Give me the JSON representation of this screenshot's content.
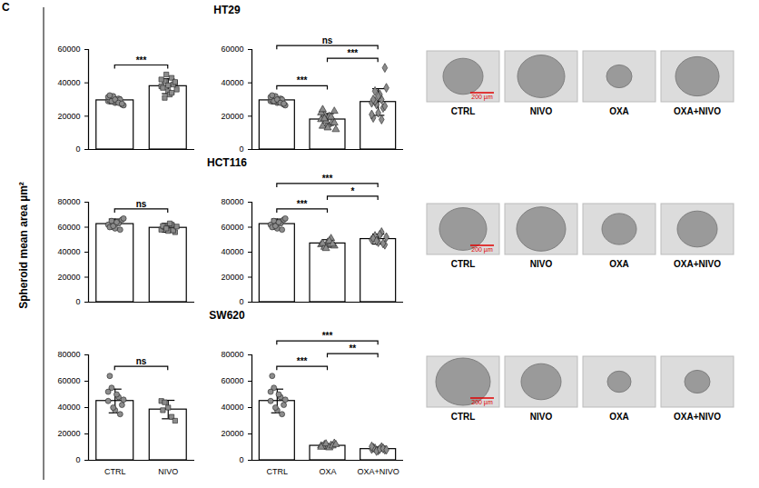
{
  "panel_label": "C",
  "ylabel": "Spheroid mean area µm²",
  "chart_data": [
    {
      "type": "bar",
      "title": "HT29",
      "categories": [
        null,
        null
      ],
      "tick_labels": "y",
      "values": [
        29500,
        38000
      ],
      "errors": [
        2000,
        4500
      ],
      "points": [
        [
          29000,
          31000,
          28000,
          30500,
          27000,
          29500,
          32000,
          28500,
          30000,
          26500,
          31500,
          29000,
          30000,
          28000,
          27500,
          32500
        ],
        [
          38000,
          41000,
          35000,
          43000,
          40000,
          37000,
          45000,
          33000,
          39000,
          36000,
          42000,
          31000,
          38500,
          34000,
          40500
        ]
      ],
      "ylim": [
        0,
        60000
      ],
      "yticks": [
        0,
        20000,
        40000,
        60000
      ],
      "significance": [
        {
          "from": 0,
          "to": 1,
          "label": "***"
        }
      ]
    },
    {
      "type": "bar",
      "categories": [
        null,
        null,
        null
      ],
      "tick_labels": "y",
      "values": [
        29500,
        18000,
        28500
      ],
      "errors": [
        2000,
        3500,
        8000
      ],
      "points": [
        [
          29000,
          31000,
          28000,
          30500,
          27000,
          29500,
          32000,
          28500,
          30000,
          26500,
          31500,
          29000,
          30000,
          28000,
          27500,
          32500
        ],
        [
          18000,
          21000,
          15000,
          19000,
          23000,
          14000,
          17000,
          20000,
          16500,
          12000,
          22000,
          18500,
          13000,
          19500,
          16000,
          24000
        ],
        [
          28000,
          35000,
          22000,
          30000,
          49000,
          19000,
          27000,
          33000,
          25000,
          37000,
          21000,
          29000,
          32000,
          18000,
          26000,
          30000
        ]
      ],
      "ylim": [
        0,
        60000
      ],
      "yticks": [
        0,
        20000,
        40000,
        60000
      ],
      "significance": [
        {
          "from": 0,
          "to": 1,
          "label": "***"
        },
        {
          "from": 1,
          "to": 2,
          "label": "***"
        },
        {
          "from": 0,
          "to": 2,
          "label": "ns"
        }
      ]
    },
    {
      "type": "bar",
      "title": "HCT116",
      "categories": [
        null,
        null
      ],
      "tick_labels": "y",
      "values": [
        62500,
        59500
      ],
      "errors": [
        4000,
        3500
      ],
      "points": [
        [
          62000,
          65000,
          59000,
          63000,
          66000,
          60000,
          61000,
          64000,
          58000,
          67000
        ],
        [
          58000,
          60000,
          57000,
          62000,
          56000,
          61000,
          59000,
          63000,
          57500,
          60500
        ]
      ],
      "ylim": [
        0,
        80000
      ],
      "yticks": [
        0,
        20000,
        40000,
        60000,
        80000
      ],
      "significance": [
        {
          "from": 0,
          "to": 1,
          "label": "ns"
        }
      ]
    },
    {
      "type": "bar",
      "categories": [
        null,
        null,
        null
      ],
      "tick_labels": "y",
      "values": [
        62500,
        47000,
        50500
      ],
      "errors": [
        4000,
        3000,
        4000
      ],
      "points": [
        [
          62000,
          65000,
          59000,
          63000,
          66000,
          60000,
          61000,
          64000,
          58000,
          67000
        ],
        [
          46000,
          44000,
          48000,
          51000,
          45000,
          47000,
          43000,
          49000,
          46500
        ],
        [
          50000,
          53000,
          48000,
          56000,
          46000,
          51000,
          49000,
          54000,
          47000,
          52000
        ]
      ],
      "ylim": [
        0,
        80000
      ],
      "yticks": [
        0,
        20000,
        40000,
        60000,
        80000
      ],
      "significance": [
        {
          "from": 0,
          "to": 1,
          "label": "***"
        },
        {
          "from": 1,
          "to": 2,
          "label": "*"
        },
        {
          "from": 0,
          "to": 2,
          "label": "***"
        }
      ]
    },
    {
      "type": "bar",
      "title": "SW620",
      "categories": [
        "CTRL",
        "NIVO"
      ],
      "values": [
        45000,
        38500
      ],
      "errors": [
        9000,
        7000
      ],
      "points": [
        [
          45000,
          55000,
          38000,
          48000,
          42000,
          64000,
          40000,
          50000,
          35000,
          46000,
          52000
        ],
        [
          45000,
          44000,
          40000,
          33000,
          30000,
          38000
        ]
      ],
      "ylim": [
        0,
        80000
      ],
      "yticks": [
        0,
        20000,
        40000,
        60000,
        80000
      ],
      "significance": [
        {
          "from": 0,
          "to": 1,
          "label": "ns"
        }
      ]
    },
    {
      "type": "bar",
      "categories": [
        "CTRL",
        "OXA",
        "OXA+NIVO"
      ],
      "values": [
        45000,
        11000,
        8500
      ],
      "errors": [
        9000,
        1500,
        1500
      ],
      "points": [
        [
          45000,
          55000,
          38000,
          48000,
          42000,
          64000,
          40000,
          50000,
          35000,
          46000,
          52000
        ],
        [
          11000,
          12000,
          10000,
          11500,
          13000,
          10500,
          12500,
          9500,
          11000,
          12000,
          10000
        ],
        [
          8500,
          9000,
          7500,
          10000,
          8000,
          9500,
          7000,
          8500,
          9000,
          8000,
          10500
        ]
      ],
      "ylim": [
        0,
        80000
      ],
      "yticks": [
        0,
        20000,
        40000,
        60000,
        80000
      ],
      "significance": [
        {
          "from": 0,
          "to": 1,
          "label": "***"
        },
        {
          "from": 1,
          "to": 2,
          "label": "**"
        },
        {
          "from": 0,
          "to": 2,
          "label": "***"
        }
      ]
    }
  ],
  "images": [
    {
      "labels": [
        "CTRL",
        "NIVO",
        "OXA",
        "OXA+NIVO"
      ],
      "scale_bar": "200 µm"
    },
    {
      "labels": [
        "CTRL",
        "NIVO",
        "OXA",
        "OXA+NIVO"
      ],
      "scale_bar": "200 µm"
    },
    {
      "labels": [
        "CTRL",
        "NIVO",
        "OXA",
        "OXA+NIVO"
      ],
      "scale_bar": "200 µm"
    }
  ]
}
